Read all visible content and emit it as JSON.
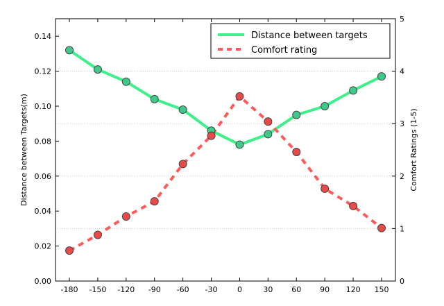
{
  "chart_data": {
    "type": "line",
    "title": "",
    "xlabel": "",
    "ylabel": "Distance between Targets(m)",
    "y2label": "Comfort Ratings (1-5)",
    "x": [
      -180,
      -150,
      -120,
      -90,
      -60,
      -30,
      0,
      30,
      60,
      90,
      120,
      150
    ],
    "xticks": [
      "-180",
      "-150",
      "-120",
      "-90",
      "-60",
      "-30",
      "0",
      "30",
      "60",
      "90",
      "120",
      "150"
    ],
    "ylim": [
      0.0,
      0.15
    ],
    "yticks": [
      "0.00",
      "0.02",
      "0.04",
      "0.06",
      "0.08",
      "0.10",
      "0.12",
      "0.14"
    ],
    "y2lim": [
      0,
      5
    ],
    "y2ticks": [
      "0",
      "1",
      "2",
      "3",
      "4",
      "5"
    ],
    "grid": "horizontal dotted, at right-axis ticks",
    "legend_position": "top-right",
    "series": [
      {
        "name": "Distance between targets",
        "axis": "left",
        "style": "solid",
        "color": "#3ef08a",
        "marker_color": "#40c98a",
        "values": [
          0.132,
          0.121,
          0.114,
          0.104,
          0.098,
          0.086,
          0.078,
          0.084,
          0.095,
          0.1,
          0.109,
          0.117
        ]
      },
      {
        "name": "Comfort rating",
        "axis": "right",
        "style": "dashed",
        "color": "#ff5a5a",
        "marker_color": "#e84a4a",
        "values": [
          0.58,
          0.88,
          1.23,
          1.52,
          2.23,
          2.77,
          3.52,
          3.04,
          2.46,
          1.76,
          1.43,
          1.01
        ]
      }
    ]
  }
}
